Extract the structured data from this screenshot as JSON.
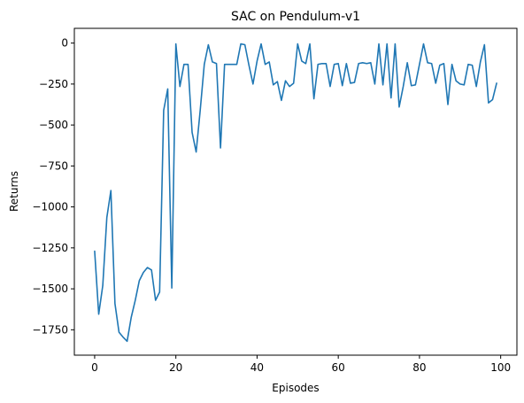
{
  "chart_data": {
    "type": "line",
    "title": "SAC on Pendulum-v1",
    "xlabel": "Episodes",
    "ylabel": "Returns",
    "xlim": [
      -5,
      104
    ],
    "ylim": [
      -1905,
      90
    ],
    "xticks": [
      0,
      20,
      40,
      60,
      80,
      100
    ],
    "yticks": [
      0,
      -250,
      -500,
      -750,
      -1000,
      -1250,
      -1500,
      -1750
    ],
    "xtick_labels": [
      "0",
      "20",
      "40",
      "60",
      "80",
      "100"
    ],
    "ytick_labels": [
      "0",
      "−250",
      "−500",
      "−750",
      "−1000",
      "−1250",
      "−1500",
      "−1750"
    ],
    "grid": false,
    "line_color": "#1f77b4",
    "series": [
      {
        "x": [
          0,
          1,
          2,
          3,
          4,
          5,
          6,
          7,
          8,
          9,
          10,
          11,
          12,
          13,
          14,
          15,
          16,
          17,
          18,
          19,
          20,
          21,
          22,
          23,
          24,
          25,
          26,
          27,
          28,
          29,
          30,
          31,
          32,
          33,
          34,
          35,
          36,
          37,
          38,
          39,
          40,
          41,
          42,
          43,
          44,
          45,
          46,
          47,
          48,
          49,
          50,
          51,
          52,
          53,
          54,
          55,
          56,
          57,
          58,
          59,
          60,
          61,
          62,
          63,
          64,
          65,
          66,
          67,
          68,
          69,
          70,
          71,
          72,
          73,
          74,
          75,
          76,
          77,
          78,
          79,
          80,
          81,
          82,
          83,
          84,
          85,
          86,
          87,
          88,
          89,
          90,
          91,
          92,
          93,
          94,
          95,
          96,
          97,
          98,
          99
        ],
        "values": [
          -1270,
          -1655,
          -1480,
          -1065,
          -900,
          -1590,
          -1765,
          -1795,
          -1820,
          -1675,
          -1570,
          -1450,
          -1400,
          -1370,
          -1385,
          -1570,
          -1520,
          -410,
          -280,
          -1495,
          -5,
          -265,
          -130,
          -130,
          -545,
          -665,
          -410,
          -130,
          -10,
          -115,
          -125,
          -640,
          -130,
          -130,
          -130,
          -130,
          -5,
          -10,
          -135,
          -250,
          -110,
          -5,
          -130,
          -115,
          -255,
          -235,
          -350,
          -230,
          -265,
          -245,
          -5,
          -110,
          -125,
          -5,
          -340,
          -130,
          -125,
          -125,
          -265,
          -130,
          -125,
          -260,
          -125,
          -245,
          -240,
          -125,
          -120,
          -125,
          -120,
          -250,
          -5,
          -255,
          -5,
          -335,
          -5,
          -390,
          -265,
          -120,
          -260,
          -255,
          -130,
          -5,
          -120,
          -125,
          -245,
          -135,
          -125,
          -375,
          -130,
          -230,
          -250,
          -255,
          -130,
          -135,
          -265,
          -115,
          -10,
          -365,
          -345,
          -245
        ]
      }
    ]
  }
}
